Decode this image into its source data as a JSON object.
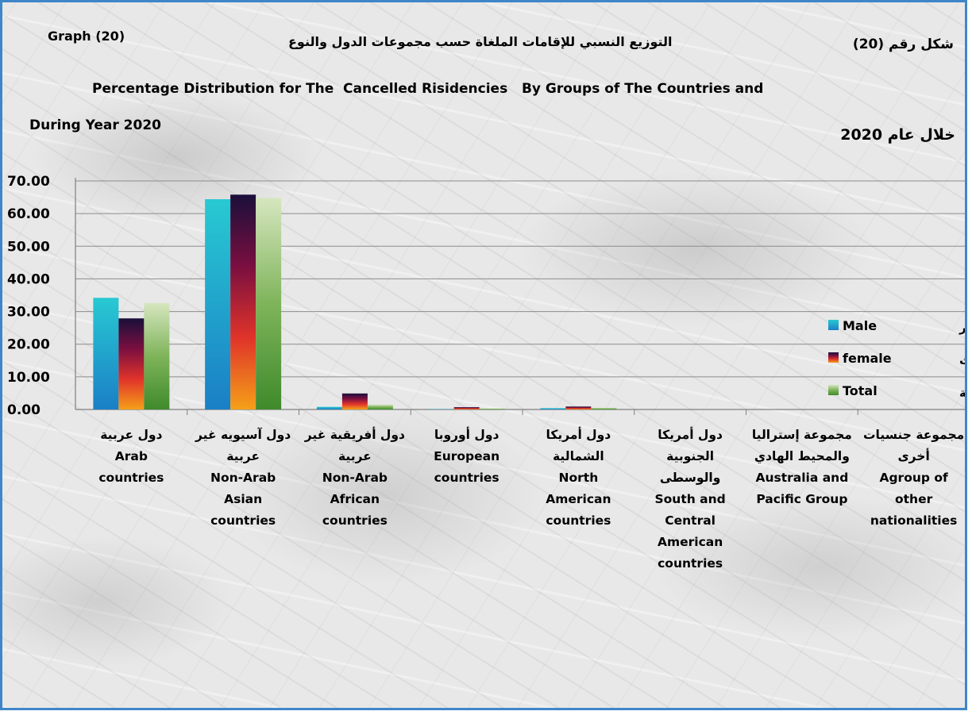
{
  "header": {
    "graph_en": "Graph (20)",
    "graph_ar": "شكل رقم (20)",
    "title_ar": "التوزيع النسبي للإقامات الملغاة حسب مجموعات الدول والنوع",
    "title_en": "Percentage Distribution for The  Cancelled Risidencies   By Groups of The Countries and",
    "year_en": "During Year 2020",
    "year_ar": "خلال عام 2020"
  },
  "colors": {
    "male": [
      "#28c9d2",
      "#1a7fc6"
    ],
    "female": [
      "#1a0f3a",
      "#7a0f40",
      "#e0332a",
      "#f5a018"
    ],
    "total": [
      "#d6e6bf",
      "#7fb45a",
      "#3f8a2c"
    ],
    "axis": "#7f7f7f",
    "grid": "#8c8c8c"
  },
  "chart_data": {
    "type": "bar",
    "ylim": [
      0,
      70
    ],
    "yticks": [
      "0.00",
      "10.00",
      "20.00",
      "30.00",
      "40.00",
      "50.00",
      "60.00",
      "70.00"
    ],
    "categories": [
      {
        "ar": "دول عربية",
        "en": [
          "Arab",
          "countries"
        ]
      },
      {
        "ar": "دول آسيويه غير عربية",
        "en": [
          "Non-Arab",
          "Asian",
          "countries"
        ]
      },
      {
        "ar": "دول أفريقية غير عربية",
        "en": [
          "Non-Arab",
          "African",
          "countries"
        ]
      },
      {
        "ar": "دول أوروبا",
        "en": [
          "European",
          "countries"
        ]
      },
      {
        "ar": "دول أمريكا الشمالية",
        "en": [
          "North",
          "American",
          "countries"
        ]
      },
      {
        "ar": "دول أمريكا الجنوبية والوسطى",
        "en": [
          "South and",
          "Central",
          "American",
          "countries"
        ]
      },
      {
        "ar": "مجموعة إستراليا والمحيط الهادي",
        "en": [
          "Australia and",
          "Pacific Group"
        ]
      },
      {
        "ar": "مجموعة جنسيات أخرى",
        "en": [
          "Agroup of",
          "other",
          "nationalities"
        ]
      }
    ],
    "series": [
      {
        "name": "Male",
        "name_ar": "ذكور",
        "values": [
          34.2,
          64.4,
          0.8,
          0.1,
          0.4,
          0.0,
          0.0,
          0.0
        ]
      },
      {
        "name": "female",
        "name_ar": "إناث",
        "values": [
          27.9,
          65.8,
          4.9,
          0.7,
          0.9,
          0.0,
          0.0,
          0.0
        ]
      },
      {
        "name": "Total",
        "name_ar": "الجملة",
        "values": [
          32.6,
          64.8,
          1.5,
          0.3,
          0.5,
          0.0,
          0.0,
          0.0
        ]
      }
    ]
  }
}
